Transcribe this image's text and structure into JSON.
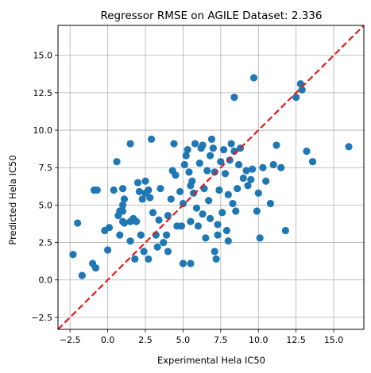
{
  "chart_data": {
    "type": "scatter",
    "title": "Regressor RMSE on AGILE Dataset: 2.336",
    "xlabel": "Experimental Hela IC50",
    "ylabel": "Predicted Hela IC50",
    "xlim": [
      -3.3,
      17.0
    ],
    "ylim": [
      -3.3,
      17.0
    ],
    "xticks": [
      -2.5,
      0.0,
      2.5,
      5.0,
      7.5,
      10.0,
      12.5,
      15.0
    ],
    "yticks": [
      -2.5,
      0.0,
      2.5,
      5.0,
      7.5,
      10.0,
      12.5,
      15.0
    ],
    "xtick_labels": [
      "−2.5",
      "0.0",
      "2.5",
      "5.0",
      "7.5",
      "10.0",
      "12.5",
      "15.0"
    ],
    "ytick_labels": [
      "−2.5",
      "0.0",
      "2.5",
      "5.0",
      "7.5",
      "10.0",
      "12.5",
      "15.0"
    ],
    "grid": true,
    "point_color": "#1f77b4",
    "reference_line": {
      "style": "dashed",
      "color": "#e31a1c",
      "from": [
        -3.3,
        -3.3
      ],
      "to": [
        17.0,
        17.0
      ]
    },
    "series": [
      {
        "points": [
          [
            -2.3,
            1.7
          ],
          [
            -2.0,
            3.8
          ],
          [
            -1.7,
            0.3
          ],
          [
            -1.0,
            1.1
          ],
          [
            -0.8,
            0.8
          ],
          [
            -0.9,
            6.0
          ],
          [
            -0.7,
            6.0
          ],
          [
            -0.2,
            3.3
          ],
          [
            0.0,
            2.0
          ],
          [
            0.1,
            3.5
          ],
          [
            0.4,
            6.0
          ],
          [
            0.6,
            7.9
          ],
          [
            0.7,
            4.3
          ],
          [
            0.8,
            4.6
          ],
          [
            0.8,
            3.0
          ],
          [
            1.0,
            4.6
          ],
          [
            1.0,
            3.9
          ],
          [
            1.1,
            3.8
          ],
          [
            1.0,
            5.0
          ],
          [
            1.1,
            5.4
          ],
          [
            1.0,
            6.1
          ],
          [
            1.5,
            3.9
          ],
          [
            1.5,
            9.1
          ],
          [
            1.7,
            4.1
          ],
          [
            1.9,
            3.9
          ],
          [
            2.0,
            6.5
          ],
          [
            2.1,
            5.9
          ],
          [
            2.3,
            5.4
          ],
          [
            2.2,
            3.0
          ],
          [
            2.5,
            6.6
          ],
          [
            2.5,
            5.8
          ],
          [
            2.7,
            6.0
          ],
          [
            2.8,
            5.5
          ],
          [
            2.9,
            9.4
          ],
          [
            3.0,
            4.5
          ],
          [
            3.2,
            3.0
          ],
          [
            3.4,
            4.0
          ],
          [
            3.5,
            6.1
          ],
          [
            3.7,
            2.5
          ],
          [
            3.9,
            3.0
          ],
          [
            4.0,
            4.3
          ],
          [
            4.2,
            5.4
          ],
          [
            4.3,
            7.3
          ],
          [
            4.4,
            9.1
          ],
          [
            4.5,
            7.0
          ],
          [
            4.6,
            3.6
          ],
          [
            4.8,
            5.9
          ],
          [
            4.9,
            3.6
          ],
          [
            5.0,
            5.1
          ],
          [
            5.1,
            7.7
          ],
          [
            5.2,
            8.3
          ],
          [
            5.3,
            8.7
          ],
          [
            5.4,
            7.2
          ],
          [
            5.5,
            6.3
          ],
          [
            5.6,
            6.6
          ],
          [
            5.7,
            5.8
          ],
          [
            5.8,
            9.1
          ],
          [
            5.9,
            4.8
          ],
          [
            6.0,
            3.6
          ],
          [
            6.1,
            7.8
          ],
          [
            6.2,
            8.8
          ],
          [
            6.3,
            9.0
          ],
          [
            6.4,
            6.1
          ],
          [
            6.5,
            2.8
          ],
          [
            6.6,
            7.3
          ],
          [
            6.7,
            5.3
          ],
          [
            6.8,
            8.3
          ],
          [
            6.9,
            9.4
          ],
          [
            7.0,
            8.8
          ],
          [
            7.1,
            7.2
          ],
          [
            7.2,
            1.4
          ],
          [
            7.3,
            3.7
          ],
          [
            7.4,
            6.0
          ],
          [
            7.5,
            7.9
          ],
          [
            7.6,
            4.5
          ],
          [
            7.7,
            8.7
          ],
          [
            7.8,
            7.1
          ],
          [
            7.9,
            3.3
          ],
          [
            8.0,
            5.7
          ],
          [
            8.1,
            8.0
          ],
          [
            8.2,
            9.1
          ],
          [
            8.3,
            5.1
          ],
          [
            8.4,
            8.6
          ],
          [
            8.5,
            4.6
          ],
          [
            8.6,
            6.1
          ],
          [
            8.7,
            7.7
          ],
          [
            8.8,
            8.8
          ],
          [
            9.0,
            6.8
          ],
          [
            9.2,
            7.3
          ],
          [
            9.3,
            6.3
          ],
          [
            9.5,
            6.7
          ],
          [
            9.6,
            7.4
          ],
          [
            9.7,
            13.5
          ],
          [
            9.9,
            4.6
          ],
          [
            10.0,
            5.8
          ],
          [
            10.1,
            2.8
          ],
          [
            10.3,
            7.5
          ],
          [
            10.5,
            6.6
          ],
          [
            10.8,
            5.1
          ],
          [
            11.0,
            7.7
          ],
          [
            11.2,
            9.0
          ],
          [
            11.5,
            7.5
          ],
          [
            11.8,
            3.3
          ],
          [
            12.5,
            12.2
          ],
          [
            12.8,
            13.1
          ],
          [
            12.9,
            12.7
          ],
          [
            13.2,
            8.6
          ],
          [
            13.6,
            7.9
          ],
          [
            16.0,
            8.9
          ],
          [
            8.4,
            12.2
          ],
          [
            6.3,
            4.4
          ],
          [
            5.5,
            3.9
          ],
          [
            3.3,
            2.2
          ],
          [
            2.4,
            1.9
          ],
          [
            1.8,
            1.4
          ],
          [
            1.5,
            2.6
          ],
          [
            2.7,
            1.4
          ],
          [
            4.0,
            1.9
          ],
          [
            5.0,
            1.1
          ],
          [
            5.5,
            1.1
          ],
          [
            7.1,
            1.9
          ],
          [
            8.0,
            2.6
          ],
          [
            6.8,
            4.1
          ],
          [
            7.3,
            3.0
          ]
        ]
      }
    ]
  }
}
